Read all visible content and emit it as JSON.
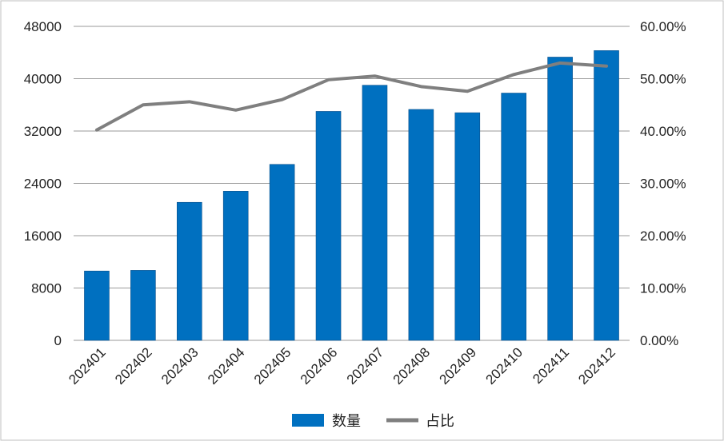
{
  "chart_data": {
    "type": "bar",
    "title": "",
    "categories": [
      "202401",
      "202402",
      "202403",
      "202404",
      "202405",
      "202406",
      "202407",
      "202408",
      "202409",
      "202410",
      "202411",
      "202412"
    ],
    "series": [
      {
        "name": "数量",
        "type": "bar",
        "axis": "left",
        "color": "#0070C0",
        "values": [
          10600,
          10700,
          21100,
          22800,
          26900,
          35000,
          39000,
          35300,
          34800,
          37800,
          43300,
          44300
        ]
      },
      {
        "name": "占比",
        "type": "line",
        "axis": "right",
        "color": "#7F7F7F",
        "values": [
          40.2,
          45.0,
          45.6,
          44.0,
          46.0,
          49.8,
          50.5,
          48.5,
          47.6,
          50.8,
          53.0,
          52.4
        ]
      }
    ],
    "y_left": {
      "min": 0,
      "max": 48000,
      "ticks": [
        "0",
        "8000",
        "16000",
        "24000",
        "32000",
        "40000",
        "48000"
      ]
    },
    "y_right": {
      "min": 0,
      "max": 60,
      "ticks": [
        "0.00%",
        "10.00%",
        "20.00%",
        "30.00%",
        "40.00%",
        "50.00%",
        "60.00%"
      ]
    },
    "grid": true,
    "legend_position": "bottom"
  }
}
